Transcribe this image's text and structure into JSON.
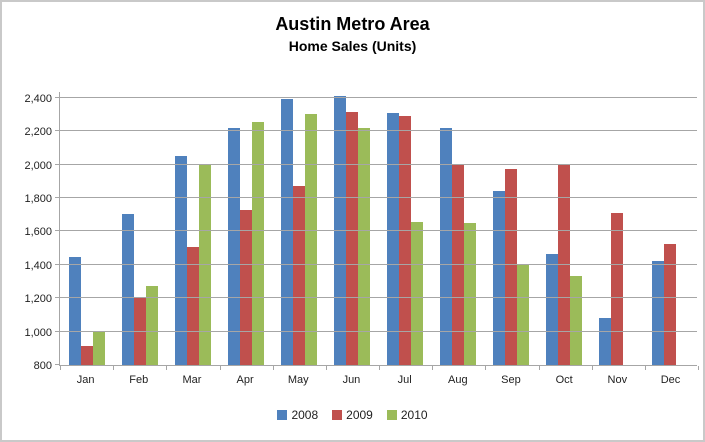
{
  "title": "Austin Metro Area",
  "subtitle": "Home Sales (Units)",
  "chart_data": {
    "type": "bar",
    "title": "Austin Metro Area",
    "subtitle": "Home Sales (Units)",
    "categories": [
      "Jan",
      "Feb",
      "Mar",
      "Apr",
      "May",
      "Jun",
      "Jul",
      "Aug",
      "Sep",
      "Oct",
      "Nov",
      "Dec"
    ],
    "series": [
      {
        "name": "2008",
        "color": "#4F81BD",
        "values": [
          1445,
          1705,
          2050,
          2220,
          2395,
          2410,
          2310,
          2220,
          1840,
          1465,
          1080,
          1425
        ]
      },
      {
        "name": "2009",
        "color": "#C0504D",
        "values": [
          915,
          1200,
          1505,
          1730,
          1870,
          2315,
          2290,
          2000,
          1975,
          1995,
          1710,
          1525
        ]
      },
      {
        "name": "2010",
        "color": "#9BBB59",
        "values": [
          1005,
          1275,
          2000,
          2255,
          2305,
          2220,
          1655,
          1650,
          1400,
          1330,
          null,
          null
        ]
      }
    ],
    "ylim": [
      800,
      2440
    ],
    "yticks": [
      800,
      1000,
      1200,
      1400,
      1600,
      1800,
      2000,
      2200,
      2400
    ],
    "ytick_format": "thousands-comma",
    "grid": true,
    "gridline_color": "#A6A6A6",
    "legend_position": "bottom",
    "legend_entries": [
      "2008",
      "2009",
      "2010"
    ]
  }
}
